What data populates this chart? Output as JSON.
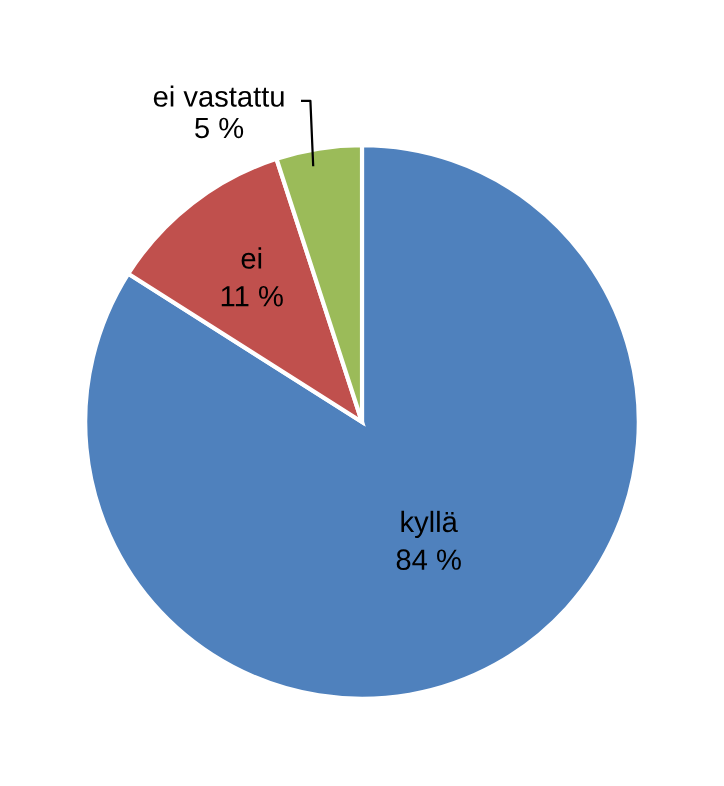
{
  "chart_data": {
    "type": "pie",
    "categories": [
      "kyllä",
      "ei",
      "ei vastattu"
    ],
    "values": [
      84,
      11,
      5
    ],
    "colors": [
      "#4f81bd",
      "#c0504d",
      "#9bbb59"
    ],
    "value_labels": [
      "84 %",
      "11 %",
      "5 %"
    ]
  }
}
